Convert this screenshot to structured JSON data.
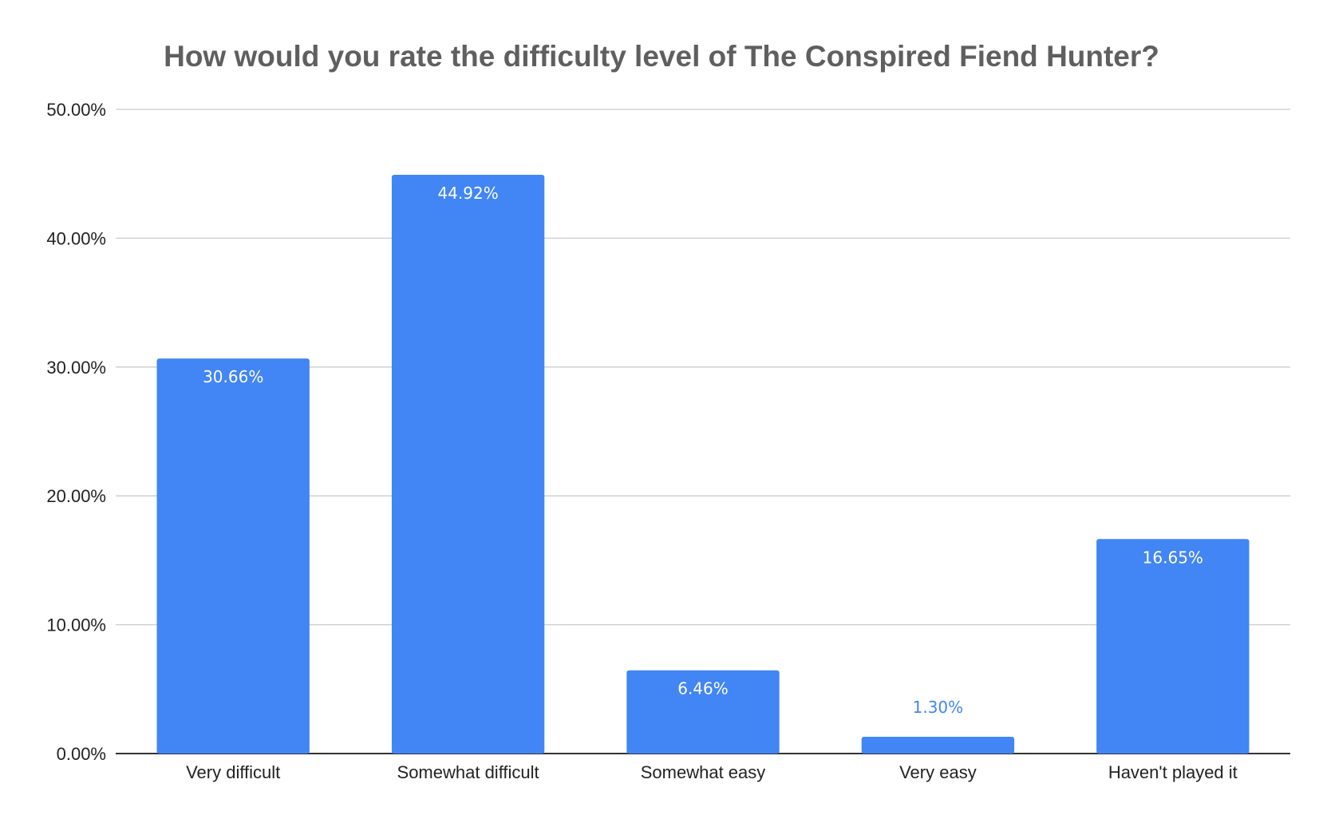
{
  "chart_data": {
    "type": "bar",
    "title": "How would you rate the difficulty level of The Conspired Fiend Hunter?",
    "xlabel": "",
    "ylabel": "",
    "categories": [
      "Very difficult",
      "Somewhat difficult",
      "Somewhat easy",
      "Very easy",
      "Haven't played it"
    ],
    "values": [
      30.66,
      44.92,
      6.46,
      1.3,
      16.65
    ],
    "data_labels": [
      "30.66%",
      "44.92%",
      "6.46%",
      "1.30%",
      "16.65%"
    ],
    "ylim": [
      0,
      50
    ],
    "yticks": [
      0,
      10,
      20,
      30,
      40,
      50
    ],
    "ytick_labels": [
      "0.00%",
      "10.00%",
      "20.00%",
      "30.00%",
      "40.00%",
      "50.00%"
    ],
    "grid": true,
    "legend": "none",
    "colors": {
      "bar": "#4285f4",
      "label_inside": "#ffffff",
      "label_outside": "#4285f4",
      "title": "#5f5f5f",
      "grid": "#cccccc"
    }
  }
}
